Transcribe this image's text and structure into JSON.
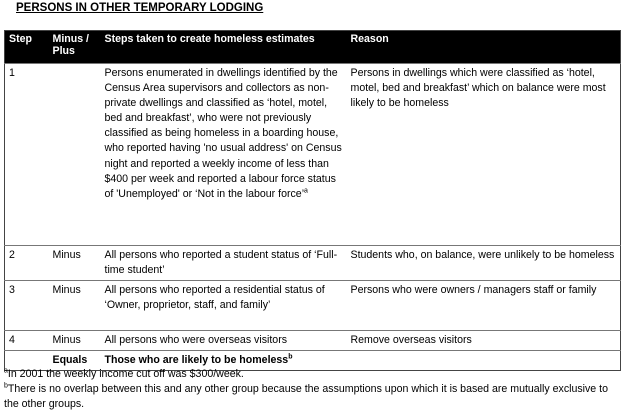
{
  "title": "PERSONS IN OTHER TEMPORARY LODGING",
  "table": {
    "header": [
      "Step",
      "Minus / Plus",
      "Steps taken to create homeless estimates",
      "Reason"
    ],
    "rows": [
      {
        "step": "1",
        "plus_minus": "",
        "text": "Persons enumerated in dwellings identified by the Census Area supervisors and collectors as non-private dwellings and classified as ‘hotel, motel, bed and breakfast’, who were not previously classified as being homeless in a boarding house, who reported having 'no usual address' on Census night and reported a weekly income of less than $400 per week and reported a labour force status of 'Unemployed' or ‘Not in the labour force’",
        "note_ref": "a",
        "reason": "Persons in dwellings which were classified as ‘hotel, motel, bed and breakfast’ which on balance were most likely to be homeless"
      },
      {
        "step": "2",
        "plus_minus": "Minus",
        "text": "All persons who reported a student status of ‘Full-time student’",
        "reason": "Students who, on balance, were unlikely to be homeless"
      },
      {
        "step": "3",
        "plus_minus": "Minus",
        "text": "All persons who reported a residential status of ‘Owner, proprietor, staff, and family’",
        "reason": "Persons who were owners / managers staff or family"
      },
      {
        "step": "4",
        "plus_minus": "Minus",
        "text": "All persons who were overseas visitors",
        "reason": "Remove overseas visitors"
      }
    ],
    "total": {
      "plus_minus": "Equals",
      "text": "Those who are likely to be homeless",
      "note_ref": "b"
    }
  },
  "footnotes": [
    {
      "marker": "a",
      "text": "In 2001 the weekly income cut off was $300/week."
    },
    {
      "marker": "b",
      "text": "There is no overlap between this and any other group because the assumptions upon which it is based are mutually exclusive to the other groups."
    }
  ]
}
